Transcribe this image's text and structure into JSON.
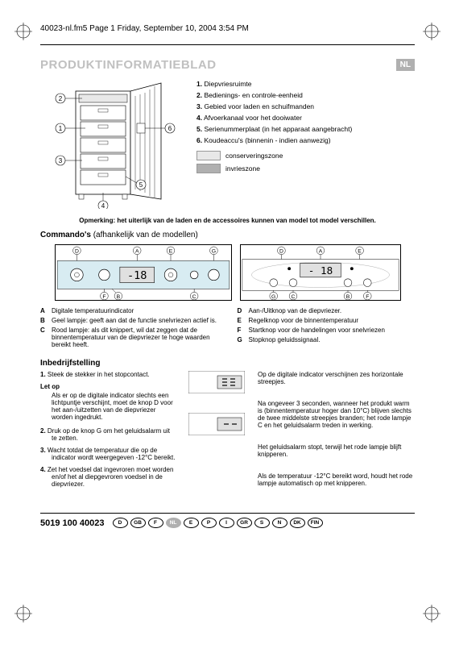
{
  "header": "40023-nl.fm5  Page 1  Friday, September 10, 2004  3:54 PM",
  "title": "PRODUKTINFORMATIEBLAD",
  "nl_badge": "NL",
  "legend_items": [
    {
      "n": "1.",
      "t": "Diepvriesruimte"
    },
    {
      "n": "2.",
      "t": "Bedienings- en controle-eenheid"
    },
    {
      "n": "3.",
      "t": "Gebied voor laden en schuifmanden"
    },
    {
      "n": "4.",
      "t": "Afvoerkanaal voor het dooiwater"
    },
    {
      "n": "5.",
      "t": "Serienummerplaat (in het apparaat aangebracht)"
    },
    {
      "n": "6.",
      "t": "Koudeaccu's (binnenin - indien aanwezig)"
    }
  ],
  "zone_conserv": "conserveringszone",
  "zone_invries": "invrieszone",
  "note_bar": "Opmerking: het uiterlijk van de laden en de accessoires kunnen van model tot model verschillen.",
  "commando_title_b": "Commando's",
  "commando_title_r": " (afhankelijk van de modellen)",
  "defs_left": [
    {
      "l": "A",
      "t": "Digitale temperatuurindicator"
    },
    {
      "l": "B",
      "t": "Geel lampje: geeft aan dat de functie snelvriezen actief is."
    },
    {
      "l": "C",
      "t": "Rood lampje: als dit knippert, wil dat zeggen dat de binnentemperatuur van de diepvriezer te hoge waarden bereikt heeft."
    }
  ],
  "defs_right": [
    {
      "l": "D",
      "t": "Aan-/Uitknop van de diepvriezer."
    },
    {
      "l": "E",
      "t": "Regelknop voor de binnentemperatuur"
    },
    {
      "l": "F",
      "t": "Startknop voor de handelingen voor snelvriezen"
    },
    {
      "l": "G",
      "t": "Stopknop geluidssignaal."
    }
  ],
  "inbedrijf_title": "Inbedrijfstelling",
  "ib_left": [
    {
      "n": "1.",
      "t": "Steek de stekker in het stopcontact."
    },
    {
      "sub": "Let op"
    },
    {
      "subtext": "Als er op de digitale indicator slechts een lichtpuntje verschijnt, moet de knop D voor het aan-/uitzetten van de diepvriezer worden ingedrukt."
    },
    {
      "n": "2.",
      "t": "Druk op de knop G om het geluidsalarm uit te zetten."
    },
    {
      "n": "3.",
      "t": "Wacht totdat de temperatuur die op de indicator wordt weergegeven -12°C bereikt."
    },
    {
      "n": "4.",
      "t": "Zet het voedsel dat ingevroren moet worden en/of het al diepgevroren voedsel in de diepvriezer."
    }
  ],
  "ib_right": [
    "Op de digitale indicator verschijnen zes horizontale streepjes.",
    "Na ongeveer 3 seconden, wanneer het produkt warm is (binnentemperatuur hoger dan 10°C) blijven slechts de twee middelste streepjes branden; het rode lampje C en het geluidsalarm treden in werking.",
    "Het geluidsalarm stopt, terwijl het rode lampje blijft knipperen.",
    "Als de temperatuur -12°C bereikt word, houdt het rode lampje automatisch op met knipperen."
  ],
  "panel_temp": "-18",
  "panel2_temp": "- 18",
  "footer_code": "5019 100 40023",
  "langs": [
    "D",
    "GB",
    "F",
    "NL",
    "E",
    "P",
    "I",
    "GR",
    "S",
    "N",
    "DK",
    "FIN"
  ],
  "lang_active": "NL",
  "colors": {
    "title_grey": "#c0c0c0",
    "badge_grey": "#b0b0b0",
    "swatch_light": "#e8e8e8",
    "swatch_dark": "#b0b0b0",
    "panel_blue": "#d8ecf2",
    "lcd_bg": "#e0e0e0"
  }
}
